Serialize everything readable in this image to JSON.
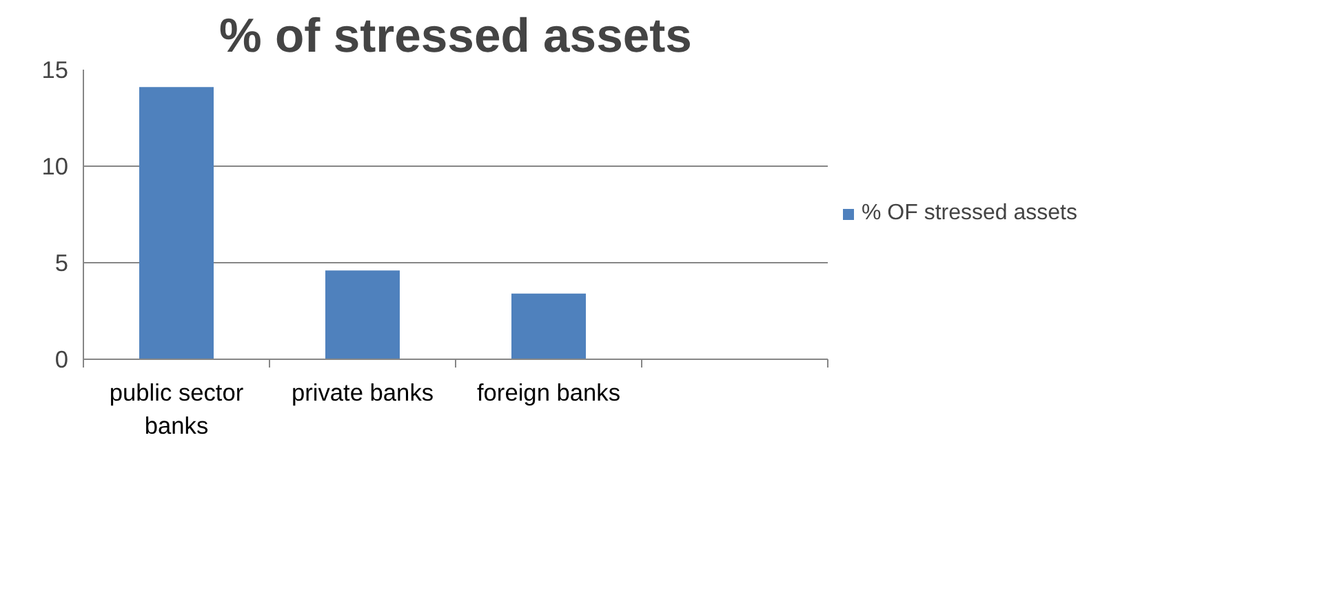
{
  "chart_data": {
    "type": "bar",
    "title": "% of stressed assets",
    "categories": [
      "public sector banks",
      "private banks",
      "foreign banks",
      null
    ],
    "series": [
      {
        "name": "% OF stressed assets",
        "color": "#4f81bd",
        "values": [
          14.1,
          4.6,
          3.4,
          null
        ]
      }
    ],
    "ylim": [
      0,
      15
    ],
    "yticks": [
      0,
      5,
      10,
      15
    ],
    "grid": "y",
    "legend": "right"
  }
}
